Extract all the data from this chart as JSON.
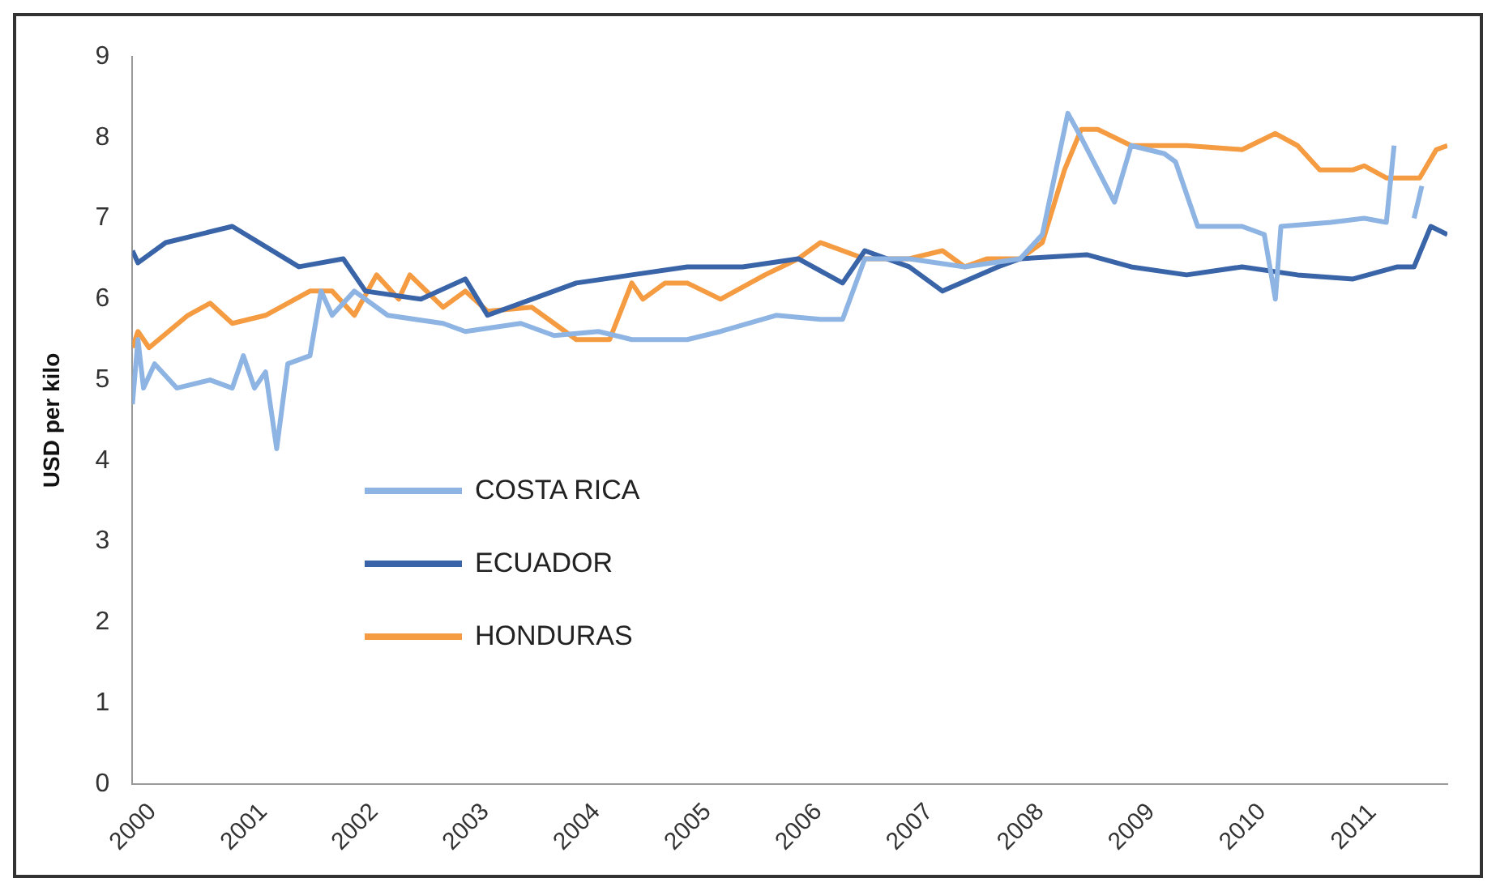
{
  "chart_data": {
    "type": "line",
    "ylabel": "USD per kilo",
    "xlim": [
      2000,
      2011.85
    ],
    "xticks": [
      2000,
      2001,
      2002,
      2003,
      2004,
      2005,
      2006,
      2007,
      2008,
      2009,
      2010,
      2011
    ],
    "ylim": [
      0,
      9
    ],
    "yticks": [
      0,
      1,
      2,
      3,
      4,
      5,
      6,
      7,
      8,
      9
    ],
    "grid": false,
    "legend": "center left",
    "marker": "none",
    "line_style": "solid",
    "series": [
      {
        "name": "COSTA RICA",
        "color": "#8eb4e3",
        "x": [
          2000,
          2000.05,
          2000.1,
          2000.2,
          2000.4,
          2000.7,
          2000.9,
          2001.0,
          2001.1,
          2001.2,
          2001.3,
          2001.4,
          2001.6,
          2001.7,
          2001.8,
          2002.0,
          2002.3,
          2002.8,
          2003.0,
          2003.5,
          2003.8,
          2004.2,
          2004.5,
          2005.0,
          2005.3,
          2005.8,
          2006.2,
          2006.4,
          2006.6,
          2007.0,
          2007.5,
          2008.0,
          2008.2,
          2008.43,
          2008.55,
          2008.85,
          2009.0,
          2009.3,
          2009.4,
          2009.6,
          2010.0,
          2010.2,
          2010.3,
          2010.35,
          2010.8,
          2011.1,
          2011.3,
          2011.37,
          2011.45,
          2011.55,
          2011.62
        ],
        "values": [
          4.7,
          5.5,
          4.9,
          5.2,
          4.9,
          5.0,
          4.9,
          5.3,
          4.9,
          5.1,
          4.15,
          5.2,
          5.3,
          6.1,
          5.8,
          6.1,
          5.8,
          5.7,
          5.6,
          5.7,
          5.55,
          5.6,
          5.5,
          5.5,
          5.6,
          5.8,
          5.75,
          5.75,
          6.5,
          6.5,
          6.4,
          6.5,
          6.8,
          8.3,
          8.0,
          7.2,
          7.9,
          7.8,
          7.7,
          6.9,
          6.9,
          6.8,
          6.0,
          6.9,
          6.95,
          7.0,
          6.95,
          7.9,
          null,
          7.0,
          7.4
        ]
      },
      {
        "name": "ECUADOR",
        "color": "#3a64a8",
        "x": [
          2000,
          2000.05,
          2000.3,
          2000.9,
          2001.5,
          2001.9,
          2002.1,
          2002.6,
          2003.0,
          2003.2,
          2003.6,
          2004.0,
          2004.5,
          2005.0,
          2005.5,
          2006.0,
          2006.4,
          2006.6,
          2007.0,
          2007.3,
          2007.8,
          2008.0,
          2008.6,
          2009.0,
          2009.5,
          2010.0,
          2010.5,
          2011.0,
          2011.4,
          2011.55,
          2011.7,
          2011.85
        ],
        "values": [
          6.6,
          6.45,
          6.7,
          6.9,
          6.4,
          6.5,
          6.1,
          6.0,
          6.25,
          5.8,
          6.0,
          6.2,
          6.3,
          6.4,
          6.4,
          6.5,
          6.2,
          6.6,
          6.4,
          6.1,
          6.4,
          6.5,
          6.55,
          6.4,
          6.3,
          6.4,
          6.3,
          6.25,
          6.4,
          6.4,
          6.9,
          6.8
        ]
      },
      {
        "name": "HONDURAS",
        "color": "#f59b42",
        "x": [
          2000,
          2000.05,
          2000.15,
          2000.5,
          2000.7,
          2000.9,
          2001.2,
          2001.6,
          2001.8,
          2002.0,
          2002.2,
          2002.4,
          2002.5,
          2002.8,
          2003.0,
          2003.2,
          2003.6,
          2003.8,
          2004.0,
          2004.3,
          2004.5,
          2004.6,
          2004.8,
          2005.0,
          2005.3,
          2005.7,
          2006.0,
          2006.2,
          2006.6,
          2007.0,
          2007.3,
          2007.5,
          2007.7,
          2008.0,
          2008.2,
          2008.4,
          2008.55,
          2008.7,
          2009.0,
          2009.5,
          2010.0,
          2010.3,
          2010.5,
          2010.7,
          2011.0,
          2011.1,
          2011.3,
          2011.6,
          2011.75,
          2011.85
        ],
        "values": [
          5.4,
          5.6,
          5.4,
          5.8,
          5.95,
          5.7,
          5.8,
          6.1,
          6.1,
          5.8,
          6.3,
          6.0,
          6.3,
          5.9,
          6.1,
          5.85,
          5.9,
          5.7,
          5.5,
          5.5,
          6.2,
          6.0,
          6.2,
          6.2,
          6.0,
          6.3,
          6.5,
          6.7,
          6.5,
          6.5,
          6.6,
          6.4,
          6.5,
          6.5,
          6.7,
          7.6,
          8.1,
          8.1,
          7.9,
          7.9,
          7.85,
          8.05,
          7.9,
          7.6,
          7.6,
          7.65,
          7.5,
          7.5,
          7.85,
          7.9
        ]
      }
    ]
  }
}
